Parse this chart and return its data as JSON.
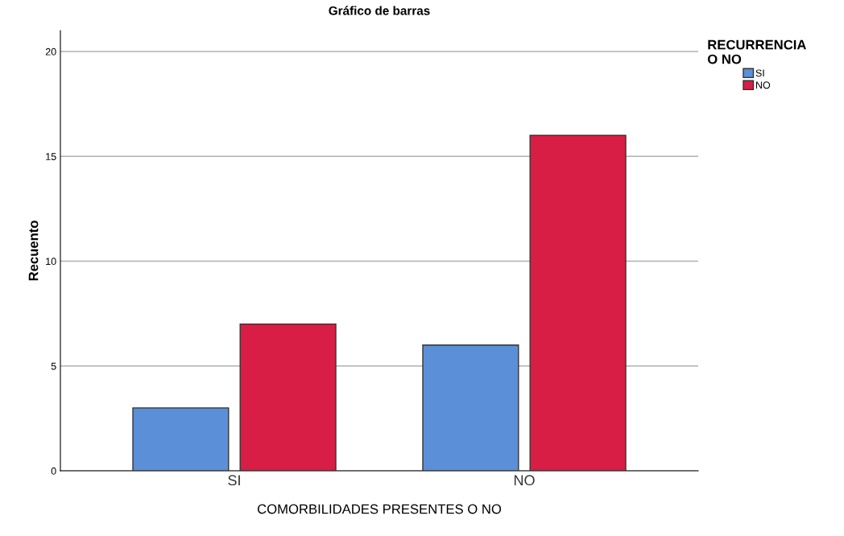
{
  "chart_data": {
    "type": "bar",
    "title": "Gráfico de barras",
    "xlabel": "COMORBILIDADES PRESENTES O NO",
    "ylabel": "Recuento",
    "legend_title": "RECURRENCIA\nO NO",
    "categories": [
      "SI",
      "NO"
    ],
    "series": [
      {
        "name": "SI",
        "color": "#5b8fd8",
        "values": [
          3,
          6
        ]
      },
      {
        "name": "NO",
        "color": "#d81e45",
        "values": [
          7,
          16
        ]
      }
    ],
    "ylim": [
      0,
      21
    ],
    "yticks": [
      0,
      5,
      10,
      15,
      20
    ],
    "grid": "y",
    "legend": "top right"
  }
}
